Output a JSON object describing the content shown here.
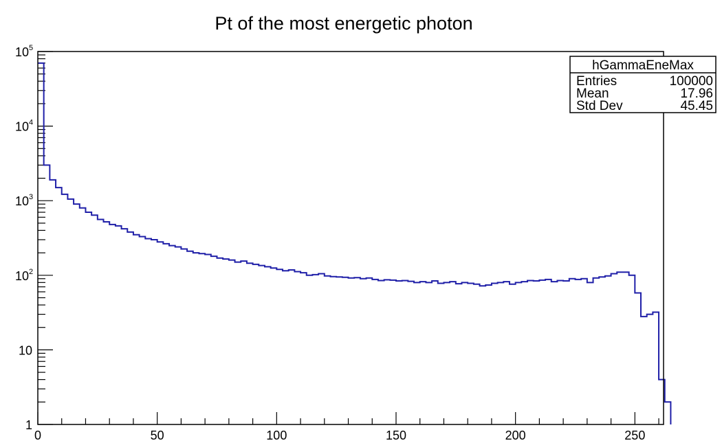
{
  "chart_data": {
    "type": "histogram",
    "title": "Pt of the most energetic photon",
    "xlabel": "",
    "ylabel": "",
    "xlim": [
      0,
      262
    ],
    "ylim": [
      1,
      100000
    ],
    "yscale": "log",
    "grid": false,
    "x_ticks": [
      "0",
      "50",
      "100",
      "150",
      "200",
      "250"
    ],
    "y_ticks": [
      {
        "value": 1,
        "base": "1",
        "exp": ""
      },
      {
        "value": 10,
        "base": "10",
        "exp": ""
      },
      {
        "value": 100,
        "base": "10",
        "exp": "2"
      },
      {
        "value": 1000,
        "base": "10",
        "exp": "3"
      },
      {
        "value": 10000,
        "base": "10",
        "exp": "4"
      },
      {
        "value": 100000,
        "base": "10",
        "exp": "5"
      }
    ],
    "line_color": "#1f1fa8",
    "bin_width": 2.5,
    "series": [
      {
        "values": [
          70000,
          3000,
          1900,
          1500,
          1220,
          1050,
          900,
          800,
          700,
          640,
          560,
          520,
          480,
          460,
          420,
          380,
          350,
          330,
          310,
          300,
          280,
          265,
          250,
          240,
          225,
          210,
          200,
          195,
          190,
          180,
          170,
          165,
          160,
          150,
          155,
          145,
          140,
          135,
          130,
          125,
          120,
          115,
          118,
          112,
          108,
          100,
          102,
          105,
          98,
          96,
          95,
          94,
          92,
          93,
          90,
          92,
          88,
          85,
          87,
          86,
          84,
          85,
          83,
          80,
          82,
          80,
          84,
          78,
          80,
          82,
          77,
          80,
          78,
          76,
          72,
          74,
          78,
          80,
          82,
          76,
          80,
          82,
          85,
          84,
          86,
          88,
          82,
          85,
          84,
          90,
          88,
          90,
          80,
          92,
          95,
          98,
          105,
          110,
          110,
          100,
          58,
          28,
          30,
          32,
          4,
          2
        ]
      }
    ],
    "stats": {
      "name": "hGammaEneMax",
      "rows": [
        {
          "label": "Entries",
          "value": "100000"
        },
        {
          "label": "Mean",
          "value": "17.96"
        },
        {
          "label": "Std Dev",
          "value": "45.45"
        }
      ]
    }
  }
}
